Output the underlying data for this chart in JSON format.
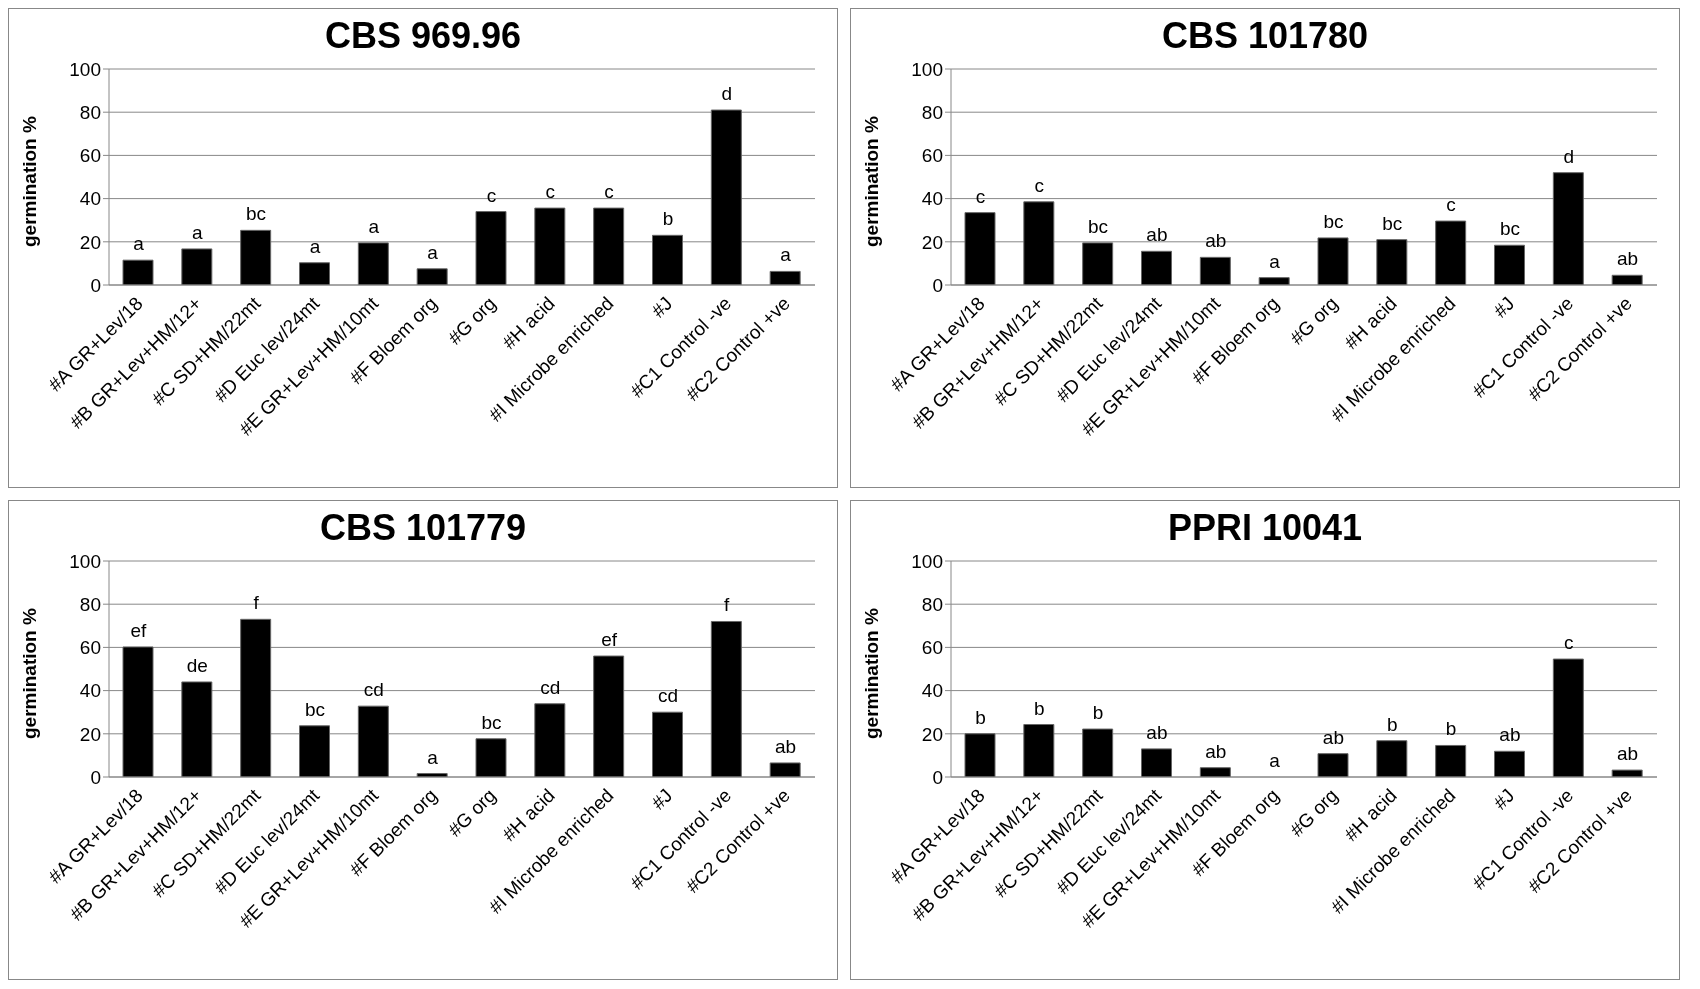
{
  "chart_data": [
    {
      "type": "bar",
      "title": "CBS 969.96",
      "ylabel": "germination %",
      "categories": [
        "#A GR+Lev/18",
        "#B GR+Lev+HM/12+",
        "#C SD+HM/22mt",
        "#D Euc lev/24mt",
        "#E GR+Lev+HM/10mt",
        "#F Bloem org",
        "#G org",
        "#H acid",
        "#I Microbe enriched",
        "#J",
        "#C1 Control -ve",
        "#C2 Control +ve"
      ],
      "values": [
        11.5,
        16.7,
        25.3,
        10.3,
        19.5,
        7.5,
        34,
        35.6,
        35.6,
        23,
        81,
        6.3
      ],
      "color": "#000000",
      "ylim": [
        0,
        100
      ],
      "yticks": [
        0,
        20,
        40,
        60,
        80,
        100
      ],
      "grid": "y",
      "annotations": [
        {
          "text": "a",
          "x": "#A GR+Lev/18",
          "y": 11.5
        },
        {
          "text": "a",
          "x": "#B GR+Lev+HM/12+",
          "y": 16.7
        },
        {
          "text": "bc",
          "x": "#C SD+HM/22mt",
          "y": 25.3
        },
        {
          "text": "a",
          "x": "#D Euc lev/24mt",
          "y": 10.3
        },
        {
          "text": "a",
          "x": "#E GR+Lev+HM/10mt",
          "y": 19.5
        },
        {
          "text": "a",
          "x": "#F Bloem org",
          "y": 7.5
        },
        {
          "text": "c",
          "x": "#G org",
          "y": 34
        },
        {
          "text": "c",
          "x": "#H acid",
          "y": 35.6
        },
        {
          "text": "c",
          "x": "#I Microbe enriched",
          "y": 35.6
        },
        {
          "text": "b",
          "x": "#J",
          "y": 23
        },
        {
          "text": "d",
          "x": "#C1 Control -ve",
          "y": 81
        },
        {
          "text": "a",
          "x": "#C2 Control +ve",
          "y": 6.3
        }
      ]
    },
    {
      "type": "bar",
      "title": "CBS 101780",
      "ylabel": "germination %",
      "categories": [
        "#A GR+Lev/18",
        "#B GR+Lev+HM/12+",
        "#C SD+HM/22mt",
        "#D Euc lev/24mt",
        "#E GR+Lev+HM/10mt",
        "#F Bloem org",
        "#G org",
        "#H acid",
        "#I Microbe enriched",
        "#J",
        "#C1 Control -ve",
        "#C2 Control +ve"
      ],
      "values": [
        33.5,
        38.5,
        19.5,
        15.6,
        12.8,
        3.4,
        21.8,
        21,
        29.6,
        18.4,
        52,
        4.5
      ],
      "color": "#000000",
      "ylim": [
        0,
        100
      ],
      "yticks": [
        0,
        20,
        40,
        60,
        80,
        100
      ],
      "grid": "y",
      "annotations": [
        {
          "text": "c",
          "x": "#A GR+Lev/18",
          "y": 33.5
        },
        {
          "text": "c",
          "x": "#B GR+Lev+HM/12+",
          "y": 38.5
        },
        {
          "text": "bc",
          "x": "#C SD+HM/22mt",
          "y": 19.5
        },
        {
          "text": "ab",
          "x": "#D Euc lev/24mt",
          "y": 15.6
        },
        {
          "text": "ab",
          "x": "#E GR+Lev+HM/10mt",
          "y": 12.8
        },
        {
          "text": "a",
          "x": "#F Bloem org",
          "y": 3.4
        },
        {
          "text": "bc",
          "x": "#G org",
          "y": 21.8
        },
        {
          "text": "bc",
          "x": "#H acid",
          "y": 21
        },
        {
          "text": "c",
          "x": "#I Microbe enriched",
          "y": 29.6
        },
        {
          "text": "bc",
          "x": "#J",
          "y": 18.4
        },
        {
          "text": "d",
          "x": "#C1 Control -ve",
          "y": 52
        },
        {
          "text": "ab",
          "x": "#C2 Control +ve",
          "y": 4.5
        }
      ]
    },
    {
      "type": "bar",
      "title": "CBS 101779",
      "ylabel": "germination %",
      "categories": [
        "#A GR+Lev/18",
        "#B GR+Lev+HM/12+",
        "#C SD+HM/22mt",
        "#D Euc lev/24mt",
        "#E GR+Lev+HM/10mt",
        "#F Bloem org",
        "#G org",
        "#H acid",
        "#I Microbe enriched",
        "#J",
        "#C1 Control -ve",
        "#C2 Control +ve"
      ],
      "values": [
        60.2,
        44,
        73,
        23.7,
        32.8,
        1.6,
        17.7,
        33.9,
        56,
        30,
        72,
        6.5
      ],
      "color": "#000000",
      "ylim": [
        0,
        100
      ],
      "yticks": [
        0,
        20,
        40,
        60,
        80,
        100
      ],
      "grid": "y",
      "annotations": [
        {
          "text": "ef",
          "x": "#A GR+Lev/18",
          "y": 60.2
        },
        {
          "text": "de",
          "x": "#B GR+Lev+HM/12+",
          "y": 44
        },
        {
          "text": "f",
          "x": "#C SD+HM/22mt",
          "y": 73
        },
        {
          "text": "bc",
          "x": "#D Euc lev/24mt",
          "y": 23.7
        },
        {
          "text": "cd",
          "x": "#E GR+Lev+HM/10mt",
          "y": 32.8
        },
        {
          "text": "a",
          "x": "#F Bloem org",
          "y": 1.6
        },
        {
          "text": "bc",
          "x": "#G org",
          "y": 17.7
        },
        {
          "text": "cd",
          "x": "#H acid",
          "y": 33.9
        },
        {
          "text": "ef",
          "x": "#I Microbe enriched",
          "y": 56
        },
        {
          "text": "cd",
          "x": "#J",
          "y": 30
        },
        {
          "text": "f",
          "x": "#C1 Control -ve",
          "y": 72
        },
        {
          "text": "ab",
          "x": "#C2 Control +ve",
          "y": 6.5
        }
      ]
    },
    {
      "type": "bar",
      "title": "PPRI 10041",
      "ylabel": "germination %",
      "categories": [
        "#A GR+Lev/18",
        "#B GR+Lev+HM/12+",
        "#C SD+HM/22mt",
        "#D Euc lev/24mt",
        "#E GR+Lev+HM/10mt",
        "#F Bloem org",
        "#G org",
        "#H acid",
        "#I Microbe enriched",
        "#J",
        "#C1 Control -ve",
        "#C2 Control +ve"
      ],
      "values": [
        20,
        24.3,
        22.2,
        13,
        4.3,
        0,
        10.8,
        16.8,
        14.6,
        11.9,
        54.6,
        3.2
      ],
      "color": "#000000",
      "ylim": [
        0,
        100
      ],
      "yticks": [
        0,
        20,
        40,
        60,
        80,
        100
      ],
      "grid": "y",
      "annotations": [
        {
          "text": "b",
          "x": "#A GR+Lev/18",
          "y": 20
        },
        {
          "text": "b",
          "x": "#B GR+Lev+HM/12+",
          "y": 24.3
        },
        {
          "text": "b",
          "x": "#C SD+HM/22mt",
          "y": 22.2
        },
        {
          "text": "ab",
          "x": "#D Euc lev/24mt",
          "y": 13
        },
        {
          "text": "ab",
          "x": "#E GR+Lev+HM/10mt",
          "y": 4.3
        },
        {
          "text": "a",
          "x": "#F Bloem org",
          "y": 0
        },
        {
          "text": "ab",
          "x": "#G org",
          "y": 10.8
        },
        {
          "text": "b",
          "x": "#H acid",
          "y": 16.8
        },
        {
          "text": "b",
          "x": "#I Microbe enriched",
          "y": 14.6
        },
        {
          "text": "ab",
          "x": "#J",
          "y": 11.9
        },
        {
          "text": "c",
          "x": "#C1 Control -ve",
          "y": 54.6
        },
        {
          "text": "ab",
          "x": "#C2 Control +ve",
          "y": 3.2
        }
      ]
    }
  ]
}
